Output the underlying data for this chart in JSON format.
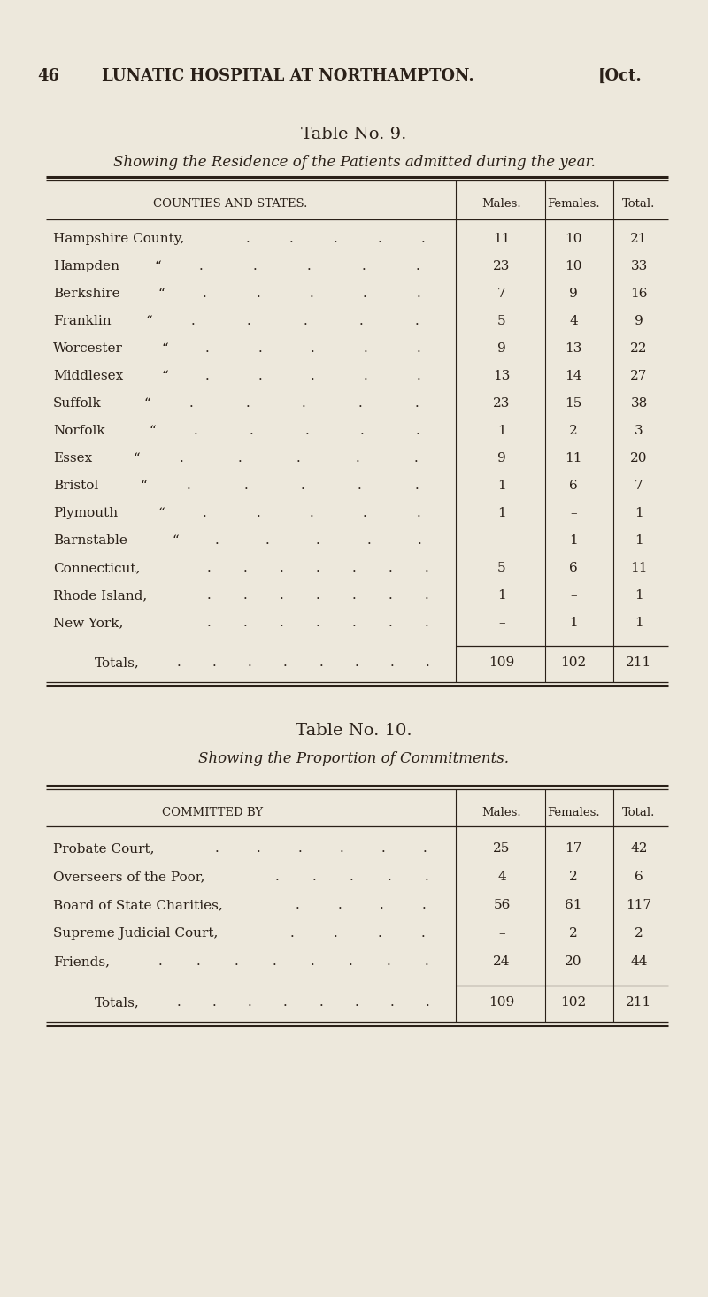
{
  "bg_color": "#ede8dc",
  "text_color": "#2a2018",
  "page_header_num": "46",
  "page_header_title": "LUNATIC HOSPITAL AT NORTHAMPTON.",
  "page_header_right": "[Oct.",
  "table9_title": "Table No. 9.",
  "table9_subtitle": "Showing the Residence of the Patients admitted during the year.",
  "table9_col_header": "COUNTIES AND STATES.",
  "table9_col_males": "Males.",
  "table9_col_females": "Females.",
  "table9_col_total": "Total.",
  "table9_rows": [
    {
      "label": "Hampshire County,",
      "suffix": "",
      "males": "11",
      "females": "10",
      "total": "21",
      "dots": 5
    },
    {
      "label": "Hampden",
      "suffix": "“",
      "males": "23",
      "females": "10",
      "total": "33",
      "dots": 5
    },
    {
      "label": "Berkshire",
      "suffix": "“",
      "males": "7",
      "females": "9",
      "total": "16",
      "dots": 5
    },
    {
      "label": "Franklin",
      "suffix": "“",
      "males": "5",
      "females": "4",
      "total": "9",
      "dots": 5
    },
    {
      "label": "Worcester",
      "suffix": "“",
      "males": "9",
      "females": "13",
      "total": "22",
      "dots": 5
    },
    {
      "label": "Middlesex",
      "suffix": "“",
      "males": "13",
      "females": "14",
      "total": "27",
      "dots": 5
    },
    {
      "label": "Suffolk",
      "suffix": "“",
      "males": "23",
      "females": "15",
      "total": "38",
      "dots": 5
    },
    {
      "label": "Norfolk",
      "suffix": "“",
      "males": "1",
      "females": "2",
      "total": "3",
      "dots": 5
    },
    {
      "label": "Essex",
      "suffix": "“",
      "males": "9",
      "females": "11",
      "total": "20",
      "dots": 5
    },
    {
      "label": "Bristol",
      "suffix": "“",
      "males": "1",
      "females": "6",
      "total": "7",
      "dots": 5
    },
    {
      "label": "Plymouth",
      "suffix": "“",
      "males": "1",
      "females": "–",
      "total": "1",
      "dots": 5
    },
    {
      "label": "Barnstable",
      "suffix": "“",
      "males": "–",
      "females": "1",
      "total": "1",
      "dots": 5
    },
    {
      "label": "Connecticut,",
      "suffix": "",
      "males": "5",
      "females": "6",
      "total": "11",
      "dots": 7
    },
    {
      "label": "Rhode Island,",
      "suffix": "",
      "males": "1",
      "females": "–",
      "total": "1",
      "dots": 7
    },
    {
      "label": "New York,",
      "suffix": "",
      "males": "–",
      "females": "1",
      "total": "1",
      "dots": 7
    }
  ],
  "table9_total": {
    "label": "Totals,",
    "males": "109",
    "females": "102",
    "total": "211",
    "dots": 8
  },
  "table10_title": "Table No. 10.",
  "table10_subtitle": "Showing the Proportion of Commitments.",
  "table10_col_header": "COMMITTED BY",
  "table10_col_males": "Males.",
  "table10_col_females": "Females.",
  "table10_col_total": "Total.",
  "table10_rows": [
    {
      "label": "Probate Court,",
      "males": "25",
      "females": "17",
      "total": "42",
      "dots": 6
    },
    {
      "label": "Overseers of the Poor,",
      "males": "4",
      "females": "2",
      "total": "6",
      "dots": 5
    },
    {
      "label": "Board of State Charities,",
      "males": "56",
      "females": "61",
      "total": "117",
      "dots": 4
    },
    {
      "label": "Supreme Judicial Court,",
      "males": "–",
      "females": "2",
      "total": "2",
      "dots": 4
    },
    {
      "label": "Friends,",
      "males": "24",
      "females": "20",
      "total": "44",
      "dots": 8
    }
  ],
  "table10_total": {
    "label": "Totals,",
    "males": "109",
    "females": "102",
    "total": "211",
    "dots": 8
  }
}
